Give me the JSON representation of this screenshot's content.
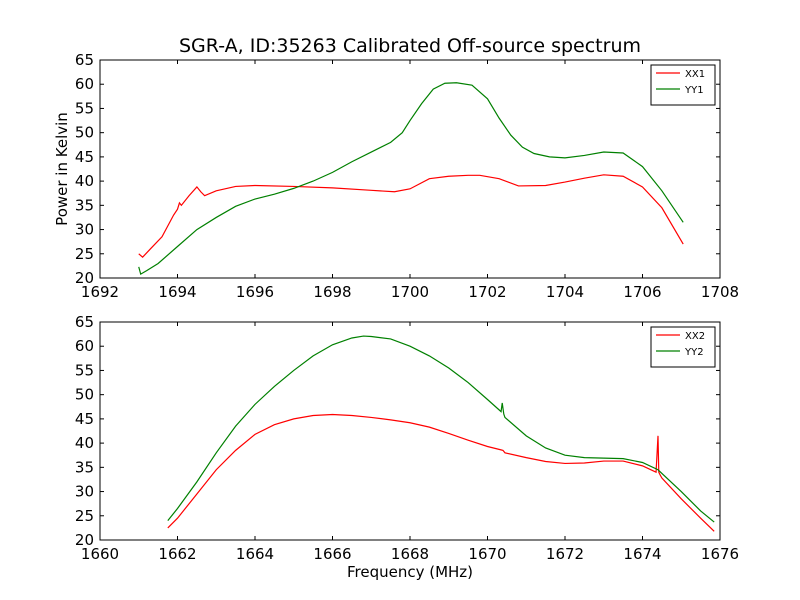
{
  "title": "SGR-A, ID:35263 Calibrated Off-source spectrum",
  "colors": {
    "red": "#ff0000",
    "green": "#008000"
  },
  "chart_data": [
    {
      "type": "line",
      "xlabel": "",
      "ylabel": "Power in Kelvin",
      "xlim": [
        1692,
        1708
      ],
      "ylim": [
        20,
        65
      ],
      "xticks": [
        1692,
        1694,
        1696,
        1698,
        1700,
        1702,
        1704,
        1706,
        1708
      ],
      "yticks": [
        20,
        25,
        30,
        35,
        40,
        45,
        50,
        55,
        60,
        65
      ],
      "legend_position": "top-right",
      "series": [
        {
          "name": "XX1",
          "color": "#ff0000",
          "x": [
            1693.0,
            1693.1,
            1693.3,
            1693.6,
            1693.9,
            1694.0,
            1694.05,
            1694.1,
            1694.3,
            1694.5,
            1694.6,
            1694.7,
            1695.0,
            1695.5,
            1696.0,
            1697.0,
            1698.0,
            1699.0,
            1699.6,
            1700.0,
            1700.5,
            1701.0,
            1701.5,
            1701.8,
            1702.3,
            1702.8,
            1703.5,
            1704.0,
            1704.5,
            1705.0,
            1705.5,
            1706.0,
            1706.5,
            1707.05
          ],
          "values": [
            25.0,
            24.3,
            26.0,
            28.5,
            33.0,
            34.2,
            35.5,
            35.0,
            37.0,
            38.8,
            37.8,
            37.0,
            38.0,
            38.9,
            39.1,
            38.9,
            38.6,
            38.1,
            37.8,
            38.4,
            40.5,
            41.0,
            41.2,
            41.2,
            40.5,
            39.0,
            39.1,
            39.8,
            40.6,
            41.3,
            41.0,
            38.8,
            34.5,
            27.0
          ]
        },
        {
          "name": "YY1",
          "color": "#008000",
          "x": [
            1693.0,
            1693.05,
            1693.2,
            1693.5,
            1694.0,
            1694.5,
            1695.0,
            1695.5,
            1696.0,
            1696.5,
            1697.0,
            1697.5,
            1698.0,
            1698.5,
            1699.0,
            1699.5,
            1699.8,
            1700.0,
            1700.3,
            1700.6,
            1700.9,
            1701.2,
            1701.6,
            1702.0,
            1702.3,
            1702.6,
            1702.9,
            1703.2,
            1703.6,
            1704.0,
            1704.5,
            1705.0,
            1705.5,
            1706.0,
            1706.5,
            1707.05
          ],
          "values": [
            22.3,
            20.8,
            21.5,
            23.0,
            26.5,
            30.0,
            32.5,
            34.8,
            36.3,
            37.3,
            38.5,
            40.0,
            41.8,
            44.0,
            46.0,
            48.0,
            50.0,
            52.5,
            56.0,
            59.0,
            60.2,
            60.3,
            59.8,
            57.0,
            53.0,
            49.5,
            47.0,
            45.7,
            45.0,
            44.8,
            45.3,
            46.0,
            45.8,
            43.0,
            38.0,
            31.5
          ]
        }
      ]
    },
    {
      "type": "line",
      "xlabel": "Frequency (MHz)",
      "ylabel": "",
      "xlim": [
        1660,
        1676
      ],
      "ylim": [
        20,
        65
      ],
      "xticks": [
        1660,
        1662,
        1664,
        1666,
        1668,
        1670,
        1672,
        1674,
        1676
      ],
      "yticks": [
        20,
        25,
        30,
        35,
        40,
        45,
        50,
        55,
        60,
        65
      ],
      "legend_position": "top-right",
      "series": [
        {
          "name": "XX2",
          "color": "#ff0000",
          "x": [
            1661.75,
            1662.0,
            1662.5,
            1663.0,
            1663.5,
            1664.0,
            1664.5,
            1665.0,
            1665.5,
            1666.0,
            1666.5,
            1667.0,
            1667.5,
            1668.0,
            1668.5,
            1669.0,
            1669.5,
            1670.0,
            1670.35,
            1670.4,
            1670.45,
            1671.0,
            1671.5,
            1672.0,
            1672.5,
            1673.0,
            1673.5,
            1674.0,
            1674.35,
            1674.4,
            1674.42,
            1674.45,
            1674.5,
            1675.0,
            1675.5,
            1675.85
          ],
          "values": [
            22.5,
            24.5,
            29.5,
            34.5,
            38.5,
            41.8,
            43.8,
            45.0,
            45.7,
            45.9,
            45.7,
            45.3,
            44.8,
            44.2,
            43.3,
            42.0,
            40.6,
            39.3,
            38.6,
            38.5,
            38.0,
            37.0,
            36.2,
            35.8,
            35.9,
            36.3,
            36.3,
            35.3,
            34.0,
            41.5,
            34.0,
            33.5,
            32.8,
            28.5,
            24.5,
            21.8
          ]
        },
        {
          "name": "YY2",
          "color": "#008000",
          "x": [
            1661.75,
            1662.0,
            1662.5,
            1663.0,
            1663.5,
            1664.0,
            1664.5,
            1665.0,
            1665.5,
            1666.0,
            1666.5,
            1666.8,
            1667.0,
            1667.5,
            1668.0,
            1668.5,
            1669.0,
            1669.5,
            1670.0,
            1670.35,
            1670.38,
            1670.42,
            1670.45,
            1671.0,
            1671.5,
            1672.0,
            1672.5,
            1673.0,
            1673.5,
            1674.0,
            1674.4,
            1675.0,
            1675.5,
            1675.85
          ],
          "values": [
            24.0,
            26.5,
            32.0,
            38.0,
            43.5,
            48.0,
            51.7,
            55.0,
            58.0,
            60.3,
            61.7,
            62.1,
            62.0,
            61.5,
            60.0,
            58.0,
            55.5,
            52.5,
            49.0,
            46.5,
            48.3,
            46.0,
            45.3,
            41.5,
            39.0,
            37.5,
            37.0,
            36.9,
            36.8,
            36.0,
            34.5,
            30.0,
            26.0,
            23.7
          ]
        }
      ]
    }
  ]
}
